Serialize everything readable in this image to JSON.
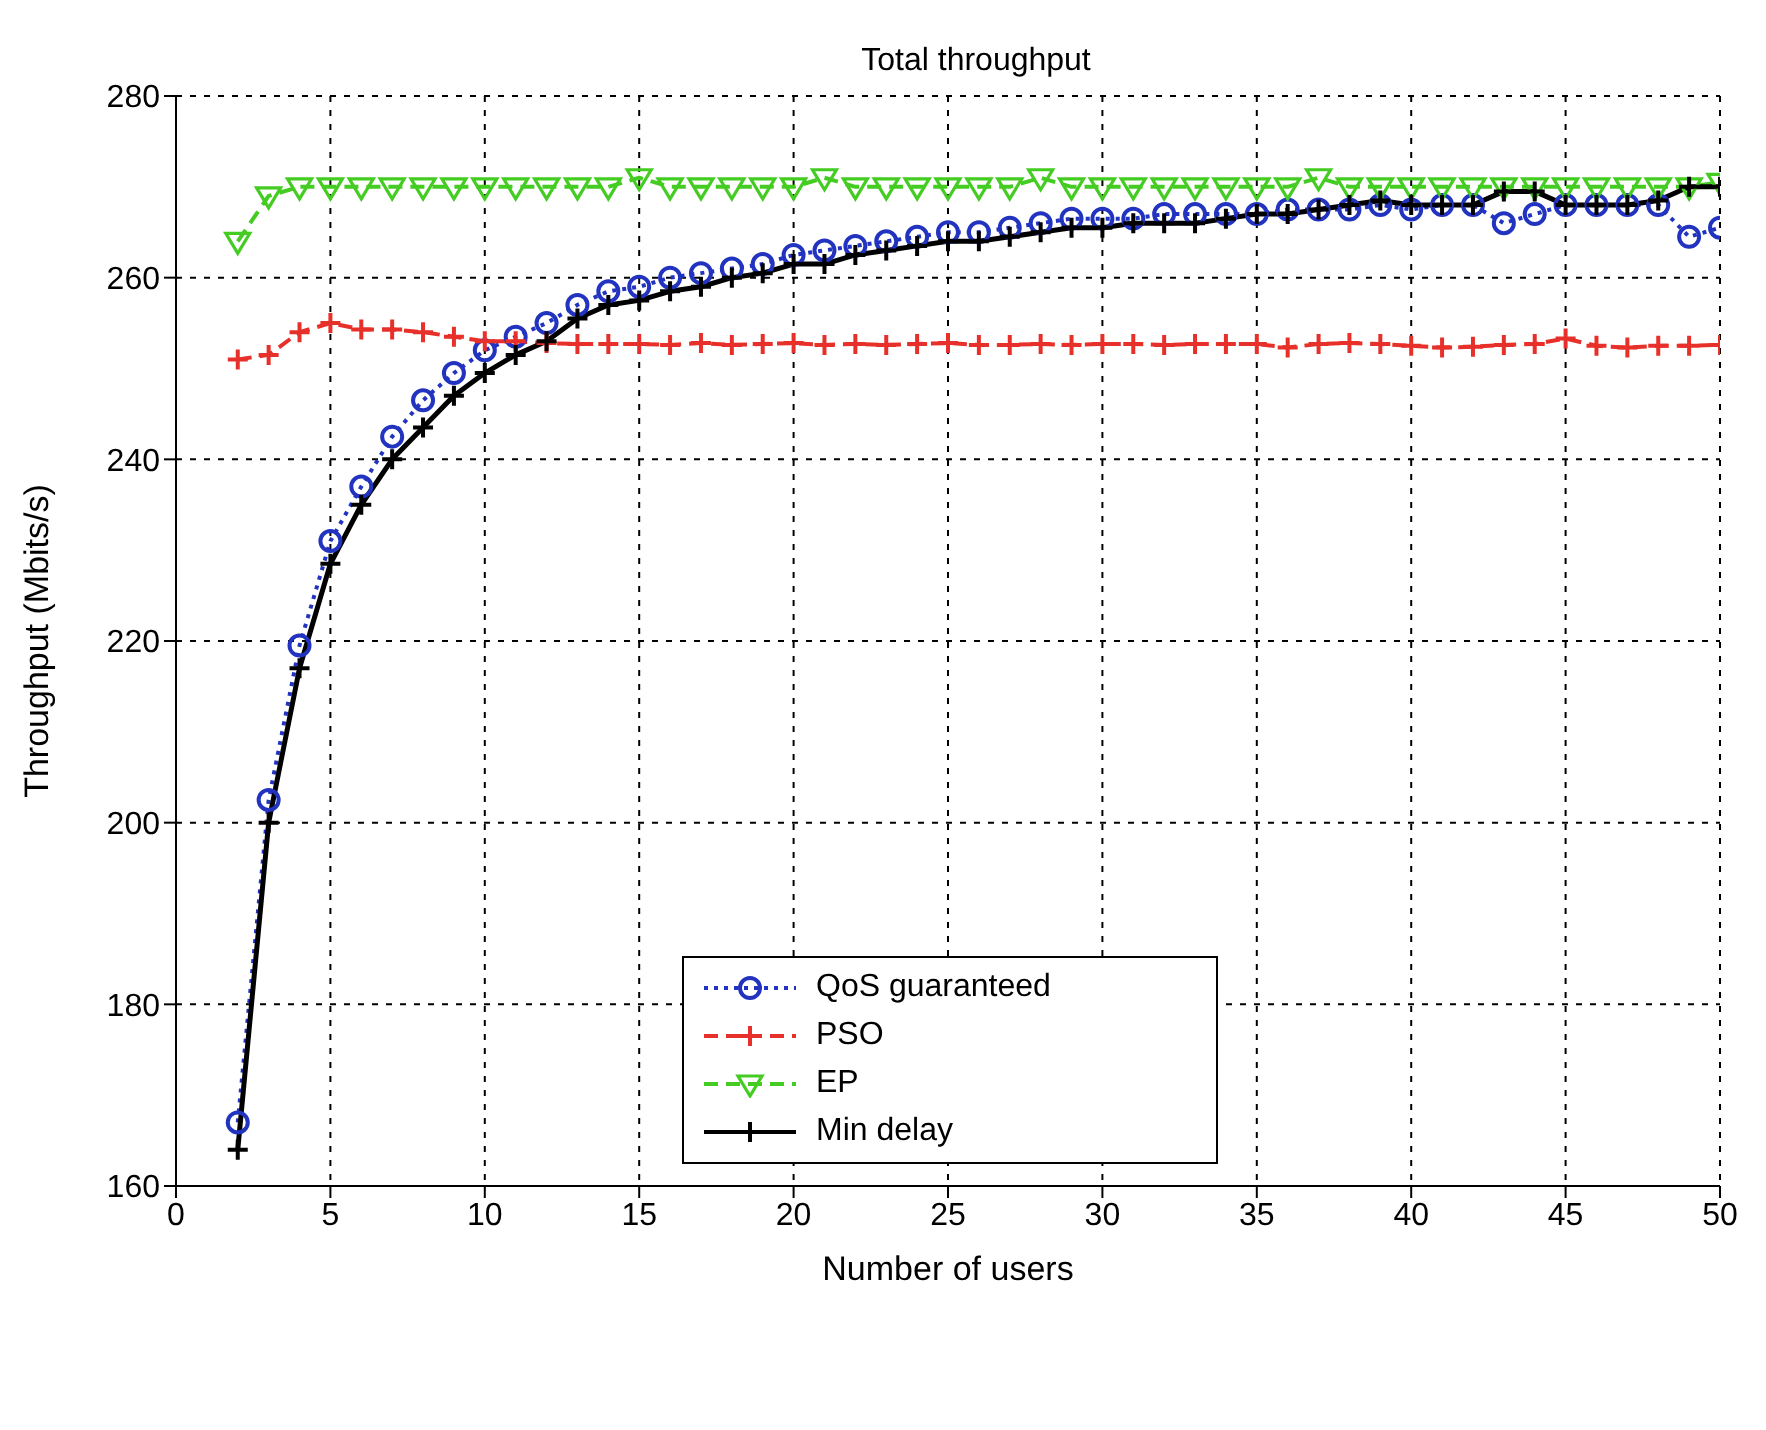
{
  "chart_data": {
    "type": "line",
    "title": "Total throughput",
    "xlabel": "Number of users",
    "ylabel": "Throughput (Mbits/s)",
    "x": [
      2,
      3,
      4,
      5,
      6,
      7,
      8,
      9,
      10,
      11,
      12,
      13,
      14,
      15,
      16,
      17,
      18,
      19,
      20,
      21,
      22,
      23,
      24,
      25,
      26,
      27,
      28,
      29,
      30,
      31,
      32,
      33,
      34,
      35,
      36,
      37,
      38,
      39,
      40,
      41,
      42,
      43,
      44,
      45,
      46,
      47,
      48,
      49,
      50
    ],
    "series": [
      {
        "name": "QoS guaranteed",
        "color": "#2233c0",
        "marker": "circle",
        "line_style": "dotted",
        "values": [
          167,
          202.5,
          219.5,
          231,
          237,
          242.5,
          246.5,
          249.5,
          252,
          253.5,
          255,
          257,
          258.5,
          259,
          260,
          260.5,
          261,
          261.5,
          262.5,
          263,
          263.5,
          264,
          264.5,
          265,
          265,
          265.5,
          266,
          266.5,
          266.5,
          266.5,
          267,
          267,
          267,
          267,
          267.5,
          267.5,
          267.5,
          268,
          267.5,
          268,
          268,
          266,
          267,
          268,
          268,
          268,
          268,
          264.5,
          265.5
        ]
      },
      {
        "name": "PSO",
        "color": "#e8302a",
        "marker": "cross",
        "line_style": "dashed",
        "values": [
          251,
          251.5,
          254,
          255,
          254.3,
          254.3,
          254,
          253.5,
          253,
          253,
          252.8,
          252.7,
          252.7,
          252.7,
          252.6,
          252.8,
          252.6,
          252.7,
          252.8,
          252.6,
          252.7,
          252.6,
          252.7,
          252.8,
          252.6,
          252.6,
          252.7,
          252.6,
          252.7,
          252.7,
          252.6,
          252.7,
          252.7,
          252.7,
          252.3,
          252.7,
          252.8,
          252.7,
          252.5,
          252.3,
          252.4,
          252.6,
          252.7,
          253.3,
          252.5,
          252.3,
          252.5,
          252.5,
          252.6
        ]
      },
      {
        "name": "EP",
        "color": "#44cc22",
        "marker": "triangle",
        "line_style": "dashed",
        "values": [
          264,
          269,
          270,
          270,
          270,
          270,
          270,
          270,
          270,
          270,
          270,
          270,
          270,
          271,
          270,
          270,
          270,
          270,
          270,
          271,
          270,
          270,
          270,
          270,
          270,
          270,
          271,
          270,
          270,
          270,
          270,
          270,
          270,
          270,
          270,
          271,
          270,
          270,
          270,
          270,
          270,
          270,
          270,
          270,
          270,
          270,
          270,
          270,
          270.5
        ]
      },
      {
        "name": "Min delay",
        "color": "#000000",
        "marker": "cross",
        "line_style": "solid",
        "values": [
          164,
          200,
          217,
          228.5,
          235,
          240,
          243.5,
          247,
          249.5,
          251.5,
          253,
          255.5,
          257,
          257.5,
          258.5,
          259,
          260,
          260.5,
          261.5,
          261.5,
          262.5,
          263,
          263.5,
          264,
          264,
          264.5,
          265,
          265.5,
          265.5,
          266,
          266,
          266,
          266.5,
          267,
          267,
          267.5,
          268,
          268.5,
          268,
          268,
          268,
          269.5,
          269.5,
          268,
          268,
          268,
          268.5,
          270,
          270
        ]
      }
    ],
    "xlim": [
      0,
      50
    ],
    "xticks": [
      0,
      5,
      10,
      15,
      20,
      25,
      30,
      35,
      40,
      45,
      50
    ],
    "ylim": [
      160,
      280
    ],
    "yticks": [
      160,
      180,
      200,
      220,
      240,
      260,
      280
    ],
    "grid": true,
    "legend": "bottom"
  }
}
